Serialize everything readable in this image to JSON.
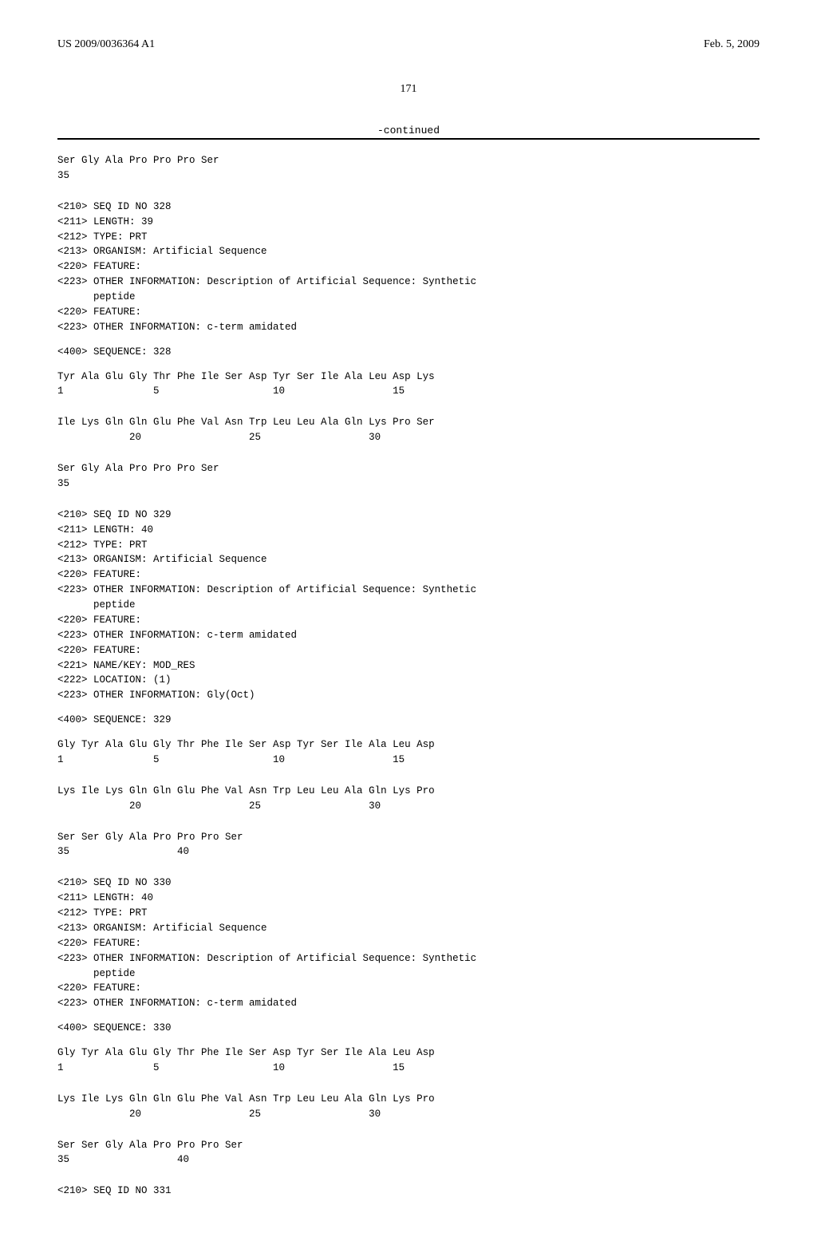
{
  "header": {
    "left": "US 2009/0036364 A1",
    "right": "Feb. 5, 2009"
  },
  "page_number": "171",
  "continued_label": "-continued",
  "blocks": [
    {
      "type": "sequence",
      "lines": [
        "Ser Gly Ala Pro Pro Pro Ser",
        "35"
      ]
    },
    {
      "type": "metadata",
      "lines": [
        "<210> SEQ ID NO 328",
        "<211> LENGTH: 39",
        "<212> TYPE: PRT",
        "<213> ORGANISM: Artificial Sequence",
        "<220> FEATURE:",
        "<223> OTHER INFORMATION: Description of Artificial Sequence: Synthetic",
        "      peptide",
        "<220> FEATURE:",
        "<223> OTHER INFORMATION: c-term amidated"
      ]
    },
    {
      "type": "metadata",
      "lines": [
        "<400> SEQUENCE: 328"
      ]
    },
    {
      "type": "sequence",
      "lines": [
        "Tyr Ala Glu Gly Thr Phe Ile Ser Asp Tyr Ser Ile Ala Leu Asp Lys",
        "1               5                   10                  15"
      ]
    },
    {
      "type": "sequence",
      "lines": [
        "Ile Lys Gln Gln Glu Phe Val Asn Trp Leu Leu Ala Gln Lys Pro Ser",
        "            20                  25                  30"
      ]
    },
    {
      "type": "sequence",
      "lines": [
        "Ser Gly Ala Pro Pro Pro Ser",
        "35"
      ]
    },
    {
      "type": "metadata",
      "lines": [
        "<210> SEQ ID NO 329",
        "<211> LENGTH: 40",
        "<212> TYPE: PRT",
        "<213> ORGANISM: Artificial Sequence",
        "<220> FEATURE:",
        "<223> OTHER INFORMATION: Description of Artificial Sequence: Synthetic",
        "      peptide",
        "<220> FEATURE:",
        "<223> OTHER INFORMATION: c-term amidated",
        "<220> FEATURE:",
        "<221> NAME/KEY: MOD_RES",
        "<222> LOCATION: (1)",
        "<223> OTHER INFORMATION: Gly(Oct)"
      ]
    },
    {
      "type": "metadata",
      "lines": [
        "<400> SEQUENCE: 329"
      ]
    },
    {
      "type": "sequence",
      "lines": [
        "Gly Tyr Ala Glu Gly Thr Phe Ile Ser Asp Tyr Ser Ile Ala Leu Asp",
        "1               5                   10                  15"
      ]
    },
    {
      "type": "sequence",
      "lines": [
        "Lys Ile Lys Gln Gln Glu Phe Val Asn Trp Leu Leu Ala Gln Lys Pro",
        "            20                  25                  30"
      ]
    },
    {
      "type": "sequence",
      "lines": [
        "Ser Ser Gly Ala Pro Pro Pro Ser",
        "35                  40"
      ]
    },
    {
      "type": "metadata",
      "lines": [
        "<210> SEQ ID NO 330",
        "<211> LENGTH: 40",
        "<212> TYPE: PRT",
        "<213> ORGANISM: Artificial Sequence",
        "<220> FEATURE:",
        "<223> OTHER INFORMATION: Description of Artificial Sequence: Synthetic",
        "      peptide",
        "<220> FEATURE:",
        "<223> OTHER INFORMATION: c-term amidated"
      ]
    },
    {
      "type": "metadata",
      "lines": [
        "<400> SEQUENCE: 330"
      ]
    },
    {
      "type": "sequence",
      "lines": [
        "Gly Tyr Ala Glu Gly Thr Phe Ile Ser Asp Tyr Ser Ile Ala Leu Asp",
        "1               5                   10                  15"
      ]
    },
    {
      "type": "sequence",
      "lines": [
        "Lys Ile Lys Gln Gln Glu Phe Val Asn Trp Leu Leu Ala Gln Lys Pro",
        "            20                  25                  30"
      ]
    },
    {
      "type": "sequence",
      "lines": [
        "Ser Ser Gly Ala Pro Pro Pro Ser",
        "35                  40"
      ]
    },
    {
      "type": "metadata",
      "lines": [
        "<210> SEQ ID NO 331"
      ]
    }
  ]
}
